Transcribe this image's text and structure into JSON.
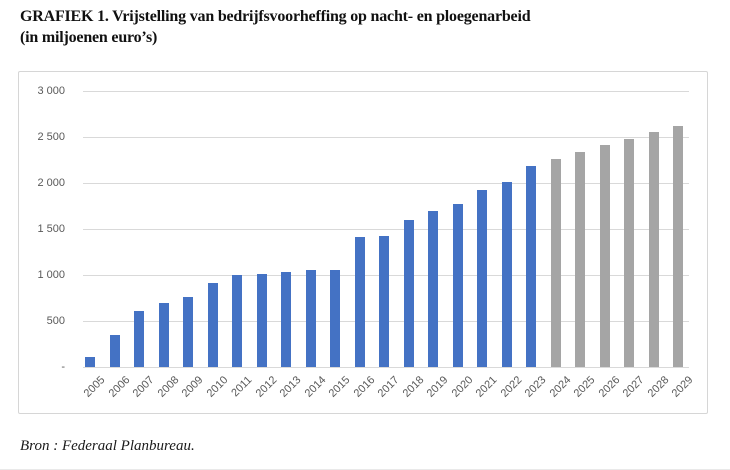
{
  "header": {
    "title_line1": "GRAFIEK 1. Vrijstelling van bedrijfsvoorheffing op nacht- en ploegenarbeid",
    "title_line2": "(in miljoenen euro’s)"
  },
  "footer": {
    "source": "Bron : Federaal Planbureau."
  },
  "colors": {
    "actual_bar": "#4472c4",
    "projection_bar": "#a5a5a5",
    "gridline": "#d9d9d9",
    "axis_text": "#595959",
    "chart_border": "#d6d6d6"
  },
  "chart_data": {
    "type": "bar",
    "title": "GRAFIEK 1. Vrijstelling van bedrijfsvoorheffing op nacht- en ploegenarbeid (in miljoenen euro’s)",
    "xlabel": "",
    "ylabel": "",
    "categories": [
      "2005",
      "2006",
      "2007",
      "2008",
      "2009",
      "2010",
      "2011",
      "2012",
      "2013",
      "2014",
      "2015",
      "2016",
      "2017",
      "2018",
      "2019",
      "2020",
      "2021",
      "2022",
      "2023",
      "2024",
      "2025",
      "2026",
      "2027",
      "2028",
      "2029"
    ],
    "values": [
      110,
      345,
      610,
      695,
      760,
      915,
      1005,
      1010,
      1030,
      1055,
      1055,
      1415,
      1425,
      1600,
      1695,
      1770,
      1925,
      2010,
      2180,
      2260,
      2340,
      2410,
      2475,
      2550,
      2615
    ],
    "series_note": "single series; years 2005-2023 shown in blue (realised), 2024-2029 in gray (projection)",
    "projection_start_index": 19,
    "ylim": [
      0,
      3000
    ],
    "ytick_step": 500,
    "ytick_labels": [
      "-",
      "500",
      "1 000",
      "1 500",
      "2 000",
      "2 500",
      "3 000"
    ],
    "grid": true,
    "legend_position": "none",
    "xtick_rotation_deg": 45
  }
}
